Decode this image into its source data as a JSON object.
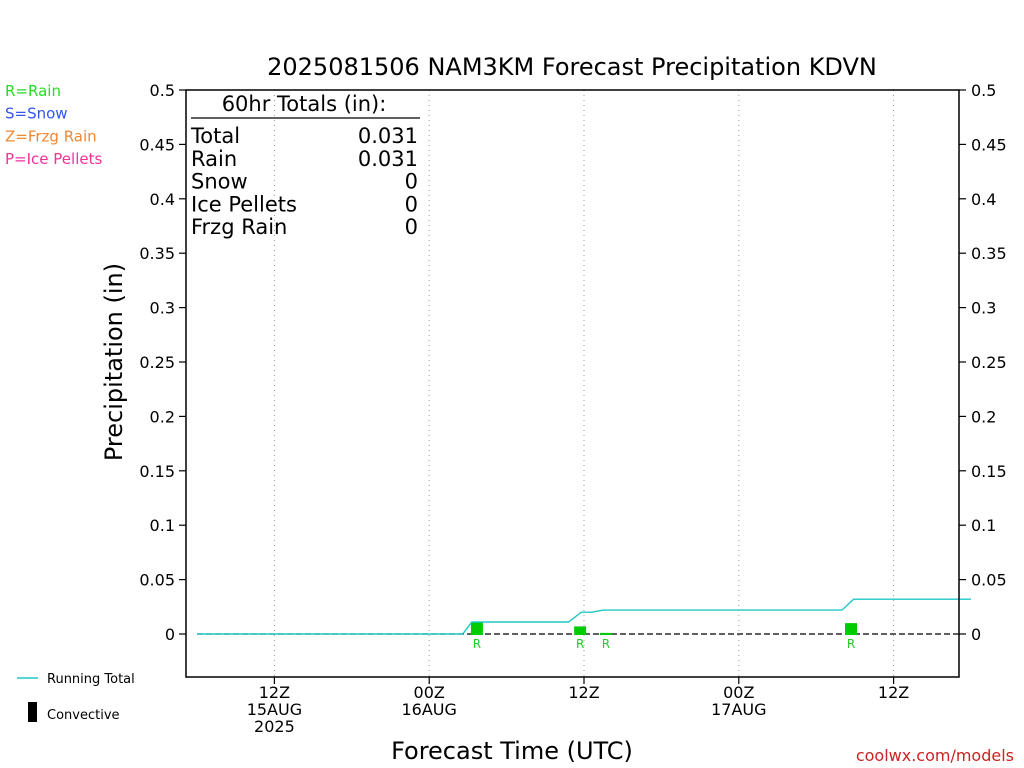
{
  "chart_data": {
    "type": "line",
    "title": "2025081506 NAM3KM Forecast Precipitation KDVN",
    "xlabel": "Forecast Time (UTC)",
    "ylabel": "Precipitation (in)",
    "ylim": [
      -0.04,
      0.5
    ],
    "xlim_hours": [
      0,
      60
    ],
    "grid": "vertical-dotted",
    "y_ticks": [
      {
        "value": 0.5,
        "label": "0.5"
      },
      {
        "value": 0.45,
        "label": "0.45"
      },
      {
        "value": 0.4,
        "label": "0.4"
      },
      {
        "value": 0.35,
        "label": "0.35"
      },
      {
        "value": 0.3,
        "label": "0.3"
      },
      {
        "value": 0.25,
        "label": "0.25"
      },
      {
        "value": 0.2,
        "label": "0.2"
      },
      {
        "value": 0.15,
        "label": "0.15"
      },
      {
        "value": 0.1,
        "label": "0.1"
      },
      {
        "value": 0.05,
        "label": "0.05"
      },
      {
        "value": 0,
        "label": "0"
      }
    ],
    "x_ticks": [
      {
        "hour": 6,
        "lines": [
          "12Z",
          "15AUG",
          "2025"
        ]
      },
      {
        "hour": 18,
        "lines": [
          "00Z",
          "16AUG"
        ]
      },
      {
        "hour": 30,
        "lines": [
          "12Z"
        ]
      },
      {
        "hour": 42,
        "lines": [
          "00Z",
          "17AUG"
        ]
      },
      {
        "hour": 54,
        "lines": [
          "12Z"
        ]
      }
    ],
    "series": [
      {
        "name": "Running Total",
        "color": "#20c8c8",
        "points": [
          {
            "hour": 0,
            "value": 0
          },
          {
            "hour": 20.6,
            "value": 0
          },
          {
            "hour": 21.3,
            "value": 0.011
          },
          {
            "hour": 28.8,
            "value": 0.011
          },
          {
            "hour": 29.8,
            "value": 0.02
          },
          {
            "hour": 30.6,
            "value": 0.02
          },
          {
            "hour": 31.5,
            "value": 0.022
          },
          {
            "hour": 50.0,
            "value": 0.022
          },
          {
            "hour": 50.9,
            "value": 0.032
          },
          {
            "hour": 60,
            "value": 0.032
          }
        ]
      }
    ],
    "precip_bars": [
      {
        "hour": 21.7,
        "value": 0.011,
        "type_label": "R"
      },
      {
        "hour": 29.7,
        "value": 0.007,
        "type_label": "R"
      },
      {
        "hour": 31.7,
        "value": 0.001,
        "type_label": "R"
      },
      {
        "hour": 50.7,
        "value": 0.01,
        "type_label": "R"
      }
    ],
    "totals_box": {
      "header": "60hr Totals (in):",
      "rows": [
        {
          "label": "Total",
          "value": "0.031"
        },
        {
          "label": "Rain",
          "value": "0.031"
        },
        {
          "label": "Snow",
          "value": "0"
        },
        {
          "label": "Ice Pellets",
          "value": "0"
        },
        {
          "label": "Frzg Rain",
          "value": "0"
        }
      ]
    },
    "type_legend": [
      {
        "text": "R=Rain",
        "color": "#22dd22"
      },
      {
        "text": "S=Snow",
        "color": "#3355ee"
      },
      {
        "text": "Z=Frzg Rain",
        "color": "#ee8833"
      },
      {
        "text": "P=Ice Pellets",
        "color": "#ee3399"
      }
    ],
    "line_legend": [
      {
        "text": "Running Total",
        "color": "#20c8c8",
        "kind": "line"
      },
      {
        "text": "Convective",
        "color": "#000000",
        "kind": "bar"
      }
    ],
    "credit": "coolwx.com/models",
    "credit_color": "#cc2222",
    "bar_color": "#00cc00"
  }
}
